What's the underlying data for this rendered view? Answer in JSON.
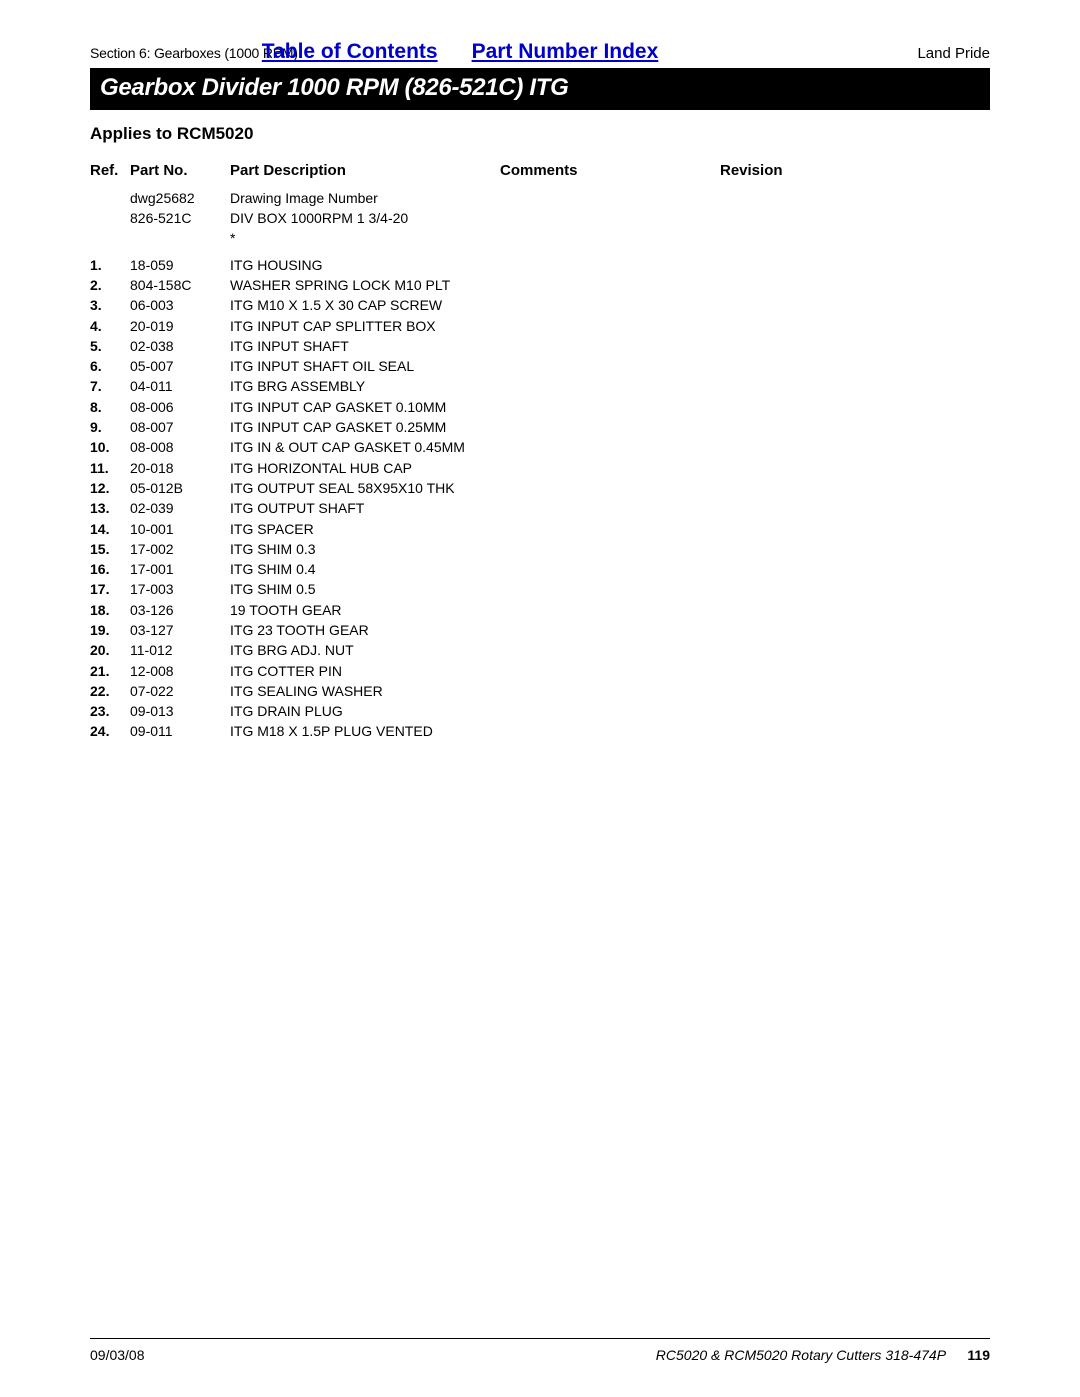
{
  "header": {
    "section_label": "Section 6: Gearboxes (1000 RPM)",
    "toc_label": "Table of Contents",
    "pni_label": "Part Number Index",
    "brand": "Land Pride"
  },
  "title": "Gearbox Divider 1000 RPM (826-521C) ITG",
  "applies_to": "Applies to RCM5020",
  "columns": {
    "ref": "Ref.",
    "partno": "Part No.",
    "desc": "Part Description",
    "comments": "Comments",
    "revision": "Revision"
  },
  "intro_rows": [
    {
      "ref": "",
      "partno": "dwg25682",
      "desc": "Drawing Image Number"
    },
    {
      "ref": "",
      "partno": "826-521C",
      "desc": "DIV BOX 1000RPM 1 3/4-20"
    },
    {
      "ref": "",
      "partno": "",
      "desc": "*"
    }
  ],
  "rows": [
    {
      "ref": "1.",
      "partno": "18-059",
      "desc": "ITG HOUSING"
    },
    {
      "ref": "2.",
      "partno": "804-158C",
      "desc": "WASHER SPRING LOCK M10 PLT"
    },
    {
      "ref": "3.",
      "partno": "06-003",
      "desc": "ITG M10 X 1.5 X 30 CAP SCREW"
    },
    {
      "ref": "4.",
      "partno": "20-019",
      "desc": "ITG INPUT CAP SPLITTER BOX"
    },
    {
      "ref": "5.",
      "partno": "02-038",
      "desc": "ITG INPUT SHAFT"
    },
    {
      "ref": "6.",
      "partno": "05-007",
      "desc": "ITG INPUT SHAFT OIL SEAL"
    },
    {
      "ref": "7.",
      "partno": "04-011",
      "desc": "ITG BRG ASSEMBLY"
    },
    {
      "ref": "8.",
      "partno": "08-006",
      "desc": "ITG INPUT CAP GASKET 0.10MM"
    },
    {
      "ref": "9.",
      "partno": "08-007",
      "desc": "ITG INPUT CAP GASKET 0.25MM"
    },
    {
      "ref": "10.",
      "partno": "08-008",
      "desc": "ITG IN & OUT CAP GASKET 0.45MM"
    },
    {
      "ref": "11.",
      "partno": "20-018",
      "desc": "ITG HORIZONTAL HUB CAP"
    },
    {
      "ref": "12.",
      "partno": "05-012B",
      "desc": "ITG OUTPUT SEAL 58X95X10 THK"
    },
    {
      "ref": "13.",
      "partno": "02-039",
      "desc": "ITG OUTPUT SHAFT"
    },
    {
      "ref": "14.",
      "partno": "10-001",
      "desc": "ITG SPACER"
    },
    {
      "ref": "15.",
      "partno": "17-002",
      "desc": "ITG SHIM 0.3"
    },
    {
      "ref": "16.",
      "partno": "17-001",
      "desc": "ITG SHIM 0.4"
    },
    {
      "ref": "17.",
      "partno": "17-003",
      "desc": "ITG SHIM 0.5"
    },
    {
      "ref": "18.",
      "partno": "03-126",
      "desc": "19 TOOTH GEAR"
    },
    {
      "ref": "19.",
      "partno": "03-127",
      "desc": "ITG 23 TOOTH GEAR"
    },
    {
      "ref": "20.",
      "partno": "11-012",
      "desc": "ITG BRG ADJ. NUT"
    },
    {
      "ref": "21.",
      "partno": "12-008",
      "desc": "ITG COTTER PIN"
    },
    {
      "ref": "22.",
      "partno": "07-022",
      "desc": "ITG SEALING WASHER"
    },
    {
      "ref": "23.",
      "partno": "09-013",
      "desc": "ITG DRAIN PLUG"
    },
    {
      "ref": "24.",
      "partno": "09-011",
      "desc": "ITG M18 X 1.5P PLUG VENTED"
    }
  ],
  "footer": {
    "date": "09/03/08",
    "doc": "RC5020 & RCM5020 Rotary Cutters 318-474P",
    "page": "119"
  }
}
